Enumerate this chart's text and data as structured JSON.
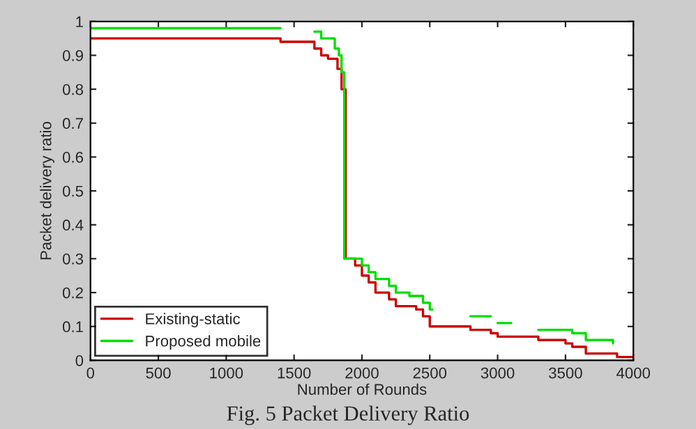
{
  "chart_data": {
    "type": "step",
    "xlabel": "Number of Rounds",
    "ylabel": "Packet delivery ratio",
    "annotations": [
      "Fig. 5 Packet Delivery Ratio"
    ],
    "xlim": [
      0,
      4000
    ],
    "ylim": [
      0,
      1
    ],
    "xticks": [
      0,
      500,
      1000,
      1500,
      2000,
      2500,
      3000,
      3500,
      4000
    ],
    "yticks": [
      0,
      0.1,
      0.2,
      0.3,
      0.4,
      0.5,
      0.6,
      0.7,
      0.8,
      0.9,
      1
    ],
    "grid": false,
    "legend": "bottom left",
    "marker": "none",
    "line_style": "solid",
    "series": [
      {
        "name": "Existing-static",
        "color": "#cc0000",
        "x": [
          0,
          1400,
          1650,
          1700,
          1750,
          1820,
          1850,
          1880,
          1950,
          2000,
          2050,
          2100,
          2200,
          2250,
          2400,
          2450,
          2500,
          2800,
          2950,
          3000,
          3300,
          3500,
          3550,
          3650,
          3880,
          4000
        ],
        "values": [
          0.95,
          0.94,
          0.92,
          0.9,
          0.89,
          0.86,
          0.8,
          0.3,
          0.28,
          0.25,
          0.23,
          0.2,
          0.18,
          0.16,
          0.15,
          0.13,
          0.1,
          0.09,
          0.08,
          0.07,
          0.06,
          0.05,
          0.04,
          0.02,
          0.01,
          0.01
        ]
      },
      {
        "name": "Proposed mobile",
        "color": "#00dd00",
        "x": [
          0,
          1400,
          1650,
          1700,
          1800,
          1830,
          1850,
          1870,
          1900,
          2000,
          2050,
          2100,
          2200,
          2250,
          2350,
          2450,
          2500,
          2520,
          2800,
          2950,
          3000,
          3100,
          3300,
          3550,
          3650,
          3850
        ],
        "values": [
          0.98,
          null,
          0.97,
          0.95,
          0.92,
          0.9,
          0.85,
          0.3,
          0.3,
          0.28,
          0.26,
          0.24,
          0.22,
          0.2,
          0.19,
          0.17,
          0.15,
          null,
          0.13,
          null,
          0.11,
          null,
          0.09,
          0.08,
          0.06,
          0.05
        ]
      }
    ]
  }
}
